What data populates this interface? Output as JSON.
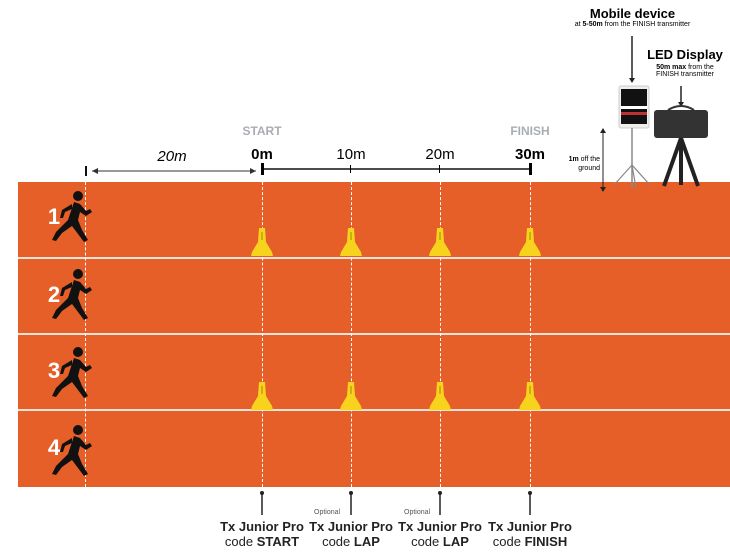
{
  "lanes": [
    "1",
    "2",
    "3",
    "4"
  ],
  "markers": {
    "start_label": "START",
    "finish_label": "FINISH",
    "distances": [
      "0m",
      "10m",
      "20m",
      "30m"
    ],
    "runup": "20m"
  },
  "transmitters": [
    {
      "optional": "",
      "name": "Tx Junior Pro",
      "code_prefix": "code",
      "code": "START"
    },
    {
      "optional": "Optional",
      "name": "Tx Junior Pro",
      "code_prefix": "code",
      "code": "LAP"
    },
    {
      "optional": "Optional",
      "name": "Tx Junior Pro",
      "code_prefix": "code",
      "code": "LAP"
    },
    {
      "optional": "",
      "name": "Tx Junior Pro",
      "code_prefix": "code",
      "code": "FINISH"
    }
  ],
  "mobile": {
    "title": "Mobile device",
    "sub_prefix": "at",
    "sub_bold": "5-50m",
    "sub_rest": "from the FINISH transmitter"
  },
  "led": {
    "title": "LED Display",
    "sub_bold": "50m max",
    "sub_rest": "from the FINISH transmitter"
  },
  "height_note": {
    "bold": "1m",
    "rest": "off the ground"
  },
  "colors": {
    "track": "#E65F28",
    "cone": "#F7D31E",
    "label_gray": "#A9ADB3"
  }
}
